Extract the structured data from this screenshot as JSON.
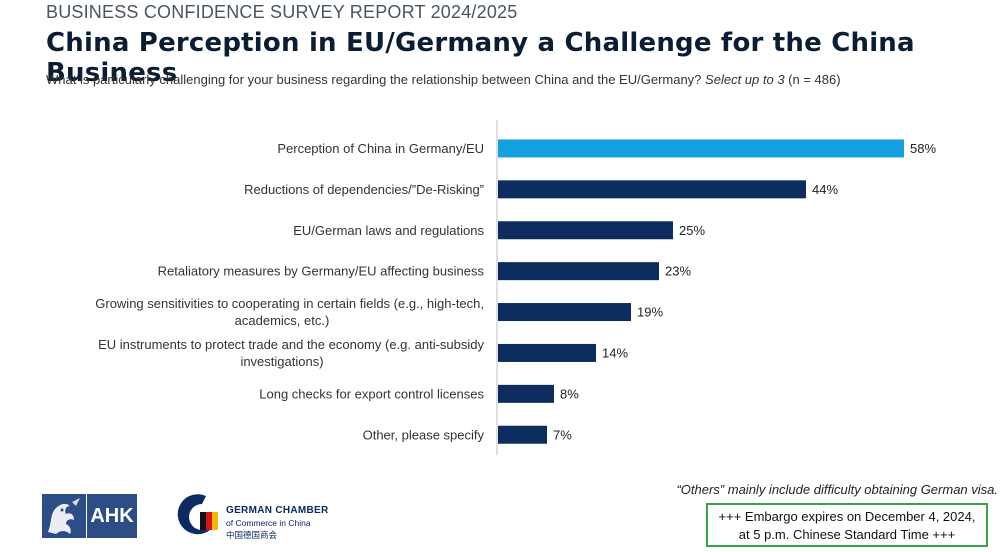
{
  "header": {
    "report_label": "BUSINESS CONFIDENCE SURVEY REPORT 2024/2025",
    "title": "China Perception in EU/Germany a Challenge for the China Business",
    "question": "What is particularly challenging for your business regarding the relationship between China and the EU/Germany?",
    "question_emphasis": "Select up to 3",
    "sample": "(n = 486)"
  },
  "chart_data": {
    "type": "bar",
    "orientation": "horizontal",
    "categories": [
      [
        "Perception of China in Germany/EU"
      ],
      [
        "Reductions of dependencies/”De-Risking”"
      ],
      [
        "EU/German laws and regulations"
      ],
      [
        "Retaliatory measures by Germany/EU affecting business"
      ],
      [
        "Growing sensitivities to cooperating in certain fields (e.g., high-tech,",
        "academics, etc.)"
      ],
      [
        "EU instruments to protect trade and the economy (e.g. anti-subsidy",
        "investigations)"
      ],
      [
        "Long checks for export control licenses"
      ],
      [
        "Other, please specify"
      ]
    ],
    "values": [
      58,
      44,
      25,
      23,
      19,
      14,
      8,
      7
    ],
    "value_labels": [
      "58%",
      "44%",
      "25%",
      "23%",
      "19%",
      "14%",
      "8%",
      "7%"
    ],
    "highlight_index": 0,
    "colors": {
      "highlight": "#14a0e0",
      "default": "#0c2d5e",
      "axis": "#bfbfbf"
    },
    "xlim": [
      0,
      60
    ],
    "grid": false,
    "legend": "none"
  },
  "footnote": "“Others” mainly include difficulty obtaining German visa.",
  "embargo": {
    "line1": "+++ Embargo expires on December 4, 2024,",
    "line2": "at 5 p.m. Chinese Standard Time +++"
  },
  "logos": {
    "ahk": {
      "text": "AHK",
      "icon": "dragon-icon",
      "color": "#2d4d87"
    },
    "german_chamber": {
      "title": "GERMAN CHAMBER",
      "subtitle": "of Commerce in China",
      "chinese": "中国德国商会",
      "icon": "gc-emblem-icon"
    }
  }
}
